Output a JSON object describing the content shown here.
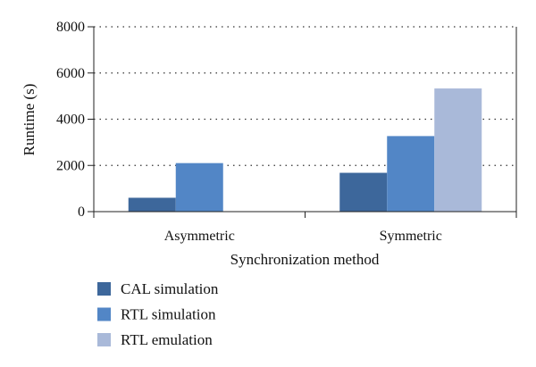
{
  "chart_data": {
    "type": "bar",
    "title": "",
    "xlabel": "Synchronization method",
    "ylabel": "Runtime (s)",
    "categories": [
      "Asymmetric",
      "Symmetric"
    ],
    "series": [
      {
        "name": "CAL simulation",
        "values": [
          600,
          1680
        ],
        "color": "#3d679b"
      },
      {
        "name": "RTL simulation",
        "values": [
          2100,
          3270
        ],
        "color": "#5286c6"
      },
      {
        "name": "RTL emulation",
        "values": [
          0,
          5330
        ],
        "color": "#a9b9d9"
      }
    ],
    "ylim": [
      0,
      8000
    ],
    "yticks": [
      "0",
      "2000",
      "4000",
      "6000",
      "8000"
    ],
    "grid": "horizontal-dotted",
    "legend_position": "bottom-left"
  }
}
